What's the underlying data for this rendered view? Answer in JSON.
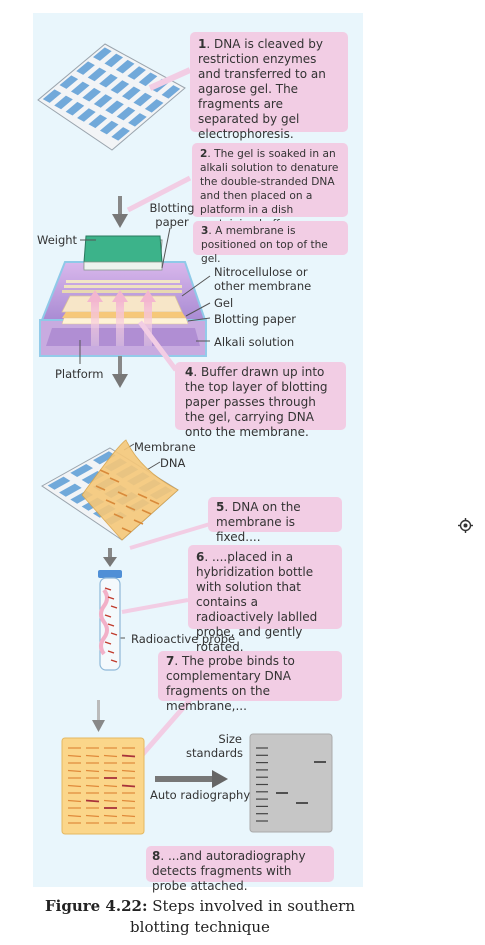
{
  "steps": [
    {
      "num": "1",
      "text": ". DNA is cleaved by restriction enzymes and transferred to an agarose gel. The fragments are separated by gel electrophoresis."
    },
    {
      "num": "2",
      "text": ". The gel is soaked in an alkali solution to denature the double-stranded DNA and then placed on a platform in a dish containing buffer."
    },
    {
      "num": "3",
      "text": ". A membrane is positioned on top of the gel."
    },
    {
      "num": "4",
      "text": ". Buffer drawn up into the top layer of blotting paper passes through the gel, carrying DNA onto the membrane."
    },
    {
      "num": "5",
      "text": ". DNA on the membrane is fixed...."
    },
    {
      "num": "6",
      "text": ". ....placed in a hybridization bottle with solution that contains a radioactively lablled probe, and gently rotated."
    },
    {
      "num": "7",
      "text": ". The probe binds to complementary DNA fragments on the membrane,..."
    },
    {
      "num": "8",
      "text": ". ...and autoradiography detects fragments with probe attached."
    }
  ],
  "labels": {
    "weight": "Weight",
    "blotting_paper_top": "Blotting paper",
    "nitrocellulose": "Nitrocellulose or other membrane",
    "gel": "Gel",
    "blotting_paper": "Blotting paper",
    "alkali": "Alkali solution",
    "platform": "Platform",
    "membrane": "Membrane",
    "dna": "DNA",
    "probe": "Radioactive probe",
    "size_standards": "Size standards",
    "auto_radiography": "Auto radiography"
  },
  "caption": {
    "figure": "Figure 4.22:",
    "text": " Steps involved in southern blotting technique"
  },
  "colors": {
    "panel": "#e9f6fc",
    "callout": "#f2cde4",
    "gel_blue": "#5b9bd5",
    "membrane_orange": "#f6c879",
    "weight_green": "#3cb38a",
    "dish_purple": "#b08ad0"
  },
  "icons": {
    "target": "crosshair-target-icon"
  }
}
